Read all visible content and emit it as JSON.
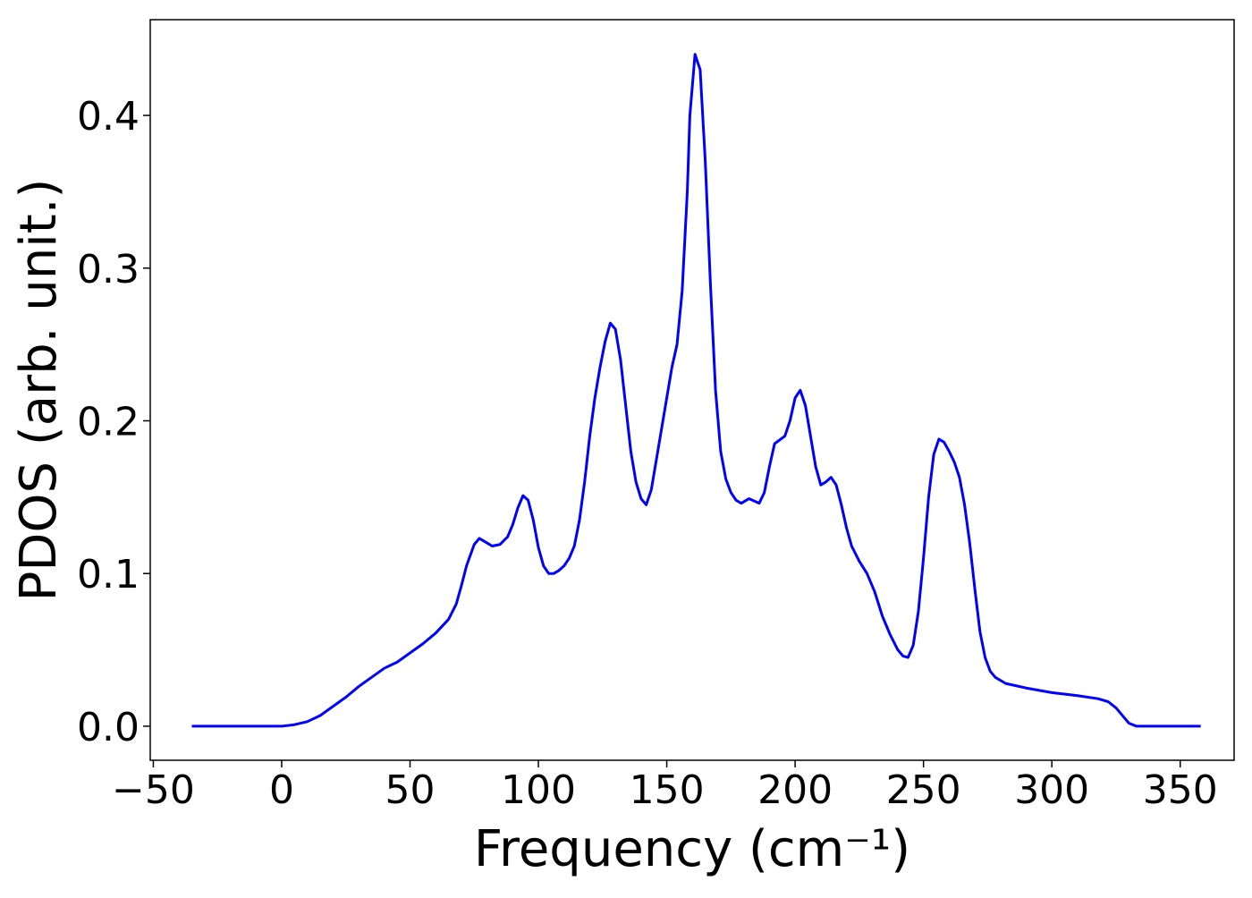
{
  "chart_data": {
    "type": "line",
    "xlabel": "Frequency (cm⁻¹)",
    "ylabel": "PDOS (arb. unit.)",
    "x": [
      -35,
      0,
      5,
      10,
      15,
      20,
      25,
      30,
      35,
      40,
      45,
      50,
      55,
      60,
      65,
      68,
      70,
      72,
      75,
      77,
      80,
      82,
      85,
      88,
      90,
      92,
      94,
      96,
      98,
      100,
      102,
      104,
      106,
      108,
      110,
      112,
      114,
      116,
      118,
      120,
      122,
      124,
      126,
      128,
      130,
      132,
      134,
      136,
      138,
      140,
      142,
      144,
      146,
      148,
      150,
      152,
      154,
      156,
      158,
      159,
      161,
      163,
      165,
      167,
      169,
      171,
      173,
      175,
      177,
      179,
      182,
      186,
      188,
      190,
      192,
      196,
      198,
      200,
      202,
      204,
      206,
      208,
      210,
      212,
      214,
      216,
      218,
      220,
      222,
      225,
      228,
      231,
      234,
      237,
      240,
      242,
      244,
      246,
      248,
      250,
      252,
      254,
      256,
      258,
      260,
      262,
      264,
      266,
      268,
      270,
      272,
      274,
      276,
      278,
      282,
      290,
      300,
      310,
      318,
      322,
      325,
      328,
      330,
      333,
      340,
      358
    ],
    "series": [
      {
        "name": "PDOS",
        "color": "#0000ff",
        "values": [
          0,
          0,
          0.001,
          0.003,
          0.007,
          0.013,
          0.019,
          0.026,
          0.032,
          0.038,
          0.042,
          0.048,
          0.054,
          0.061,
          0.07,
          0.08,
          0.092,
          0.105,
          0.119,
          0.123,
          0.12,
          0.118,
          0.119,
          0.124,
          0.132,
          0.143,
          0.151,
          0.148,
          0.135,
          0.117,
          0.105,
          0.1,
          0.1,
          0.102,
          0.105,
          0.11,
          0.118,
          0.135,
          0.16,
          0.19,
          0.215,
          0.235,
          0.252,
          0.264,
          0.26,
          0.24,
          0.21,
          0.18,
          0.16,
          0.149,
          0.145,
          0.155,
          0.175,
          0.195,
          0.215,
          0.235,
          0.25,
          0.285,
          0.35,
          0.4,
          0.44,
          0.43,
          0.37,
          0.29,
          0.22,
          0.18,
          0.162,
          0.153,
          0.148,
          0.146,
          0.149,
          0.146,
          0.153,
          0.17,
          0.185,
          0.19,
          0.2,
          0.215,
          0.22,
          0.21,
          0.19,
          0.17,
          0.158,
          0.16,
          0.163,
          0.158,
          0.145,
          0.13,
          0.118,
          0.108,
          0.1,
          0.088,
          0.072,
          0.06,
          0.05,
          0.046,
          0.045,
          0.053,
          0.075,
          0.11,
          0.15,
          0.178,
          0.188,
          0.186,
          0.18,
          0.173,
          0.163,
          0.145,
          0.12,
          0.09,
          0.062,
          0.045,
          0.036,
          0.032,
          0.028,
          0.025,
          0.022,
          0.02,
          0.018,
          0.016,
          0.012,
          0.006,
          0.002,
          0,
          0,
          0
        ]
      }
    ],
    "xlim": [
      -51.2,
      371
    ],
    "ylim": [
      -0.0223,
      0.4627
    ],
    "xticks": [
      {
        "value": -50,
        "label": "−50"
      },
      0,
      50,
      100,
      150,
      200,
      250,
      300,
      350
    ],
    "yticks": [
      {
        "value": 0,
        "label": "0.0"
      },
      0.1,
      0.2,
      0.3,
      0.4
    ]
  }
}
